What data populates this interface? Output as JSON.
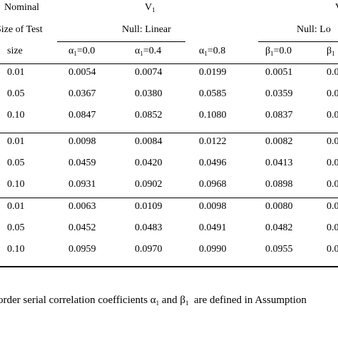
{
  "header": {
    "nominal": "Nominal",
    "size_of_test": "Size of Test",
    "size": "size",
    "v1_label": "V",
    "v1_sub": "1",
    "null_linear": "Null: Linear",
    "null_log": "Null: Lo"
  },
  "columns": [
    {
      "greek": "α",
      "sub": "1",
      "rest": "=0.0"
    },
    {
      "greek": "α",
      "sub": "1",
      "rest": "=0.4"
    },
    {
      "greek": "α",
      "sub": "1",
      "rest": "=0.8"
    },
    {
      "greek": "β",
      "sub": "1",
      "rest": "=0.0"
    },
    {
      "greek": "β",
      "sub": "1",
      "rest": ""
    }
  ],
  "groups": [
    {
      "rows": [
        {
          "size": "0.01",
          "values": [
            "0.0054",
            "0.0074",
            "0.0199",
            "0.0051",
            "0.0"
          ]
        },
        {
          "size": "0.05",
          "values": [
            "0.0367",
            "0.0380",
            "0.0585",
            "0.0359",
            "0.0"
          ]
        },
        {
          "size": "0.10",
          "values": [
            "0.0847",
            "0.0852",
            "0.1080",
            "0.0837",
            "0.0"
          ]
        }
      ]
    },
    {
      "rows": [
        {
          "size": "0.01",
          "values": [
            "0.0098",
            "0.0084",
            "0.0122",
            "0.0082",
            "0.0"
          ]
        },
        {
          "size": "0.05",
          "values": [
            "0.0459",
            "0.0420",
            "0.0496",
            "0.0413",
            "0.0"
          ]
        },
        {
          "size": "0.10",
          "values": [
            "0.0931",
            "0.0902",
            "0.0968",
            "0.0898",
            "0.0"
          ]
        }
      ]
    },
    {
      "rows": [
        {
          "size": "0.01",
          "values": [
            "0.0063",
            "0.0109",
            "0.0098",
            "0.0080",
            "0.0"
          ]
        },
        {
          "size": "0.05",
          "values": [
            "0.0452",
            "0.0483",
            "0.0491",
            "0.0482",
            "0.0"
          ]
        },
        {
          "size": "0.10",
          "values": [
            "0.0959",
            "0.0970",
            "0.0990",
            "0.0955",
            "0.0"
          ]
        }
      ]
    }
  ],
  "footnote": {
    "part1": "order serial correlation coefficients",
    "alpha": "α",
    "alpha_sub": "1",
    "and": "and",
    "beta": "β",
    "beta_sub": "1",
    "part2": "are defined in Assumption"
  }
}
